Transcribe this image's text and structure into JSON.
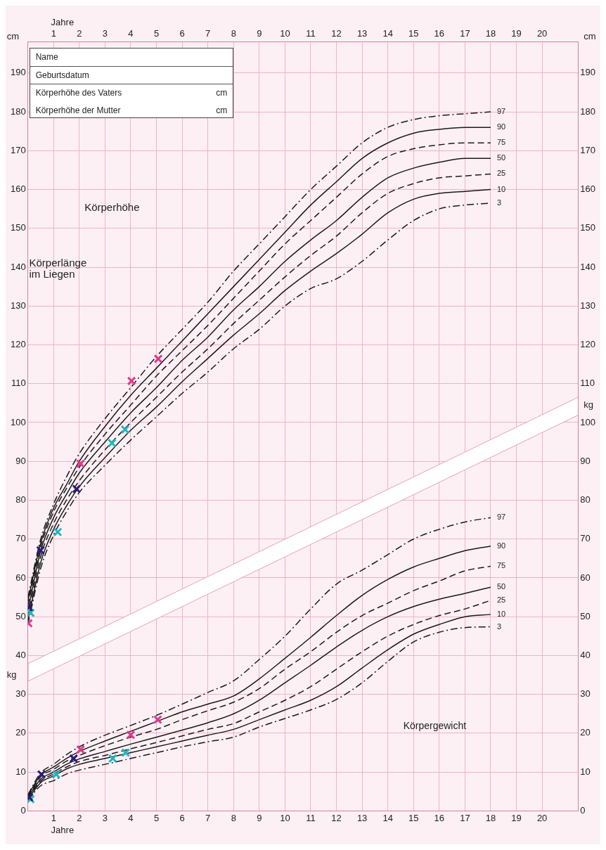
{
  "chart_data": {
    "type": "line",
    "xlabel": "Jahre",
    "x2label": "Jahre",
    "ylabel": "cm",
    "y2label": "cm",
    "annotations": [
      "Name",
      "Geburtsdatum",
      "Körperhöhe des Vaters",
      "cm",
      "Körperhöhe der Mutter",
      "cm",
      "Körperhöhe",
      "Körperlänge im Liegen",
      "Körpergewicht",
      "kg",
      "kg"
    ],
    "xlim": [
      0,
      21.4
    ],
    "xticks": [
      1,
      2,
      3,
      4,
      5,
      6,
      7,
      8,
      9,
      10,
      11,
      12,
      13,
      14,
      15,
      16,
      17,
      18,
      19,
      20
    ],
    "x2lim": [
      0,
      21.4
    ],
    "x2ticks": [
      1,
      2,
      3,
      4,
      5,
      6,
      7,
      8,
      9,
      10,
      11,
      12,
      13,
      14,
      15,
      16,
      17,
      18,
      19,
      20
    ],
    "ylim": [
      0,
      198
    ],
    "yticks": [
      0,
      10,
      20,
      30,
      40,
      50,
      60,
      70,
      80,
      90,
      100,
      110,
      120,
      130,
      140,
      150,
      160,
      170,
      180,
      190
    ],
    "y2lim": [
      0,
      198
    ],
    "y2ticks": [
      0,
      10,
      20,
      30,
      40,
      50,
      60,
      70,
      80,
      90,
      100,
      110,
      120,
      130,
      140,
      150,
      160,
      170,
      180,
      190
    ],
    "grid": true,
    "legend": false,
    "series": [
      {
        "name": "97",
        "type": "line",
        "color": "#1a1a1a",
        "line_style": "dashdot",
        "marker": "none",
        "x": [
          0,
          0.5,
          1,
          1.5,
          2,
          3,
          4,
          5,
          6,
          7,
          8,
          9,
          10,
          11,
          12,
          13,
          14,
          15,
          16,
          17,
          18
        ],
        "values": [
          55,
          70,
          79,
          86,
          92,
          101,
          109,
          117,
          124,
          131,
          139,
          146,
          153,
          160,
          166,
          172,
          176,
          178,
          179,
          179.5,
          180
        ]
      },
      {
        "name": "90",
        "type": "line",
        "color": "#1a1a1a",
        "line_style": "solid",
        "marker": "none",
        "x": [
          0,
          0.5,
          1,
          1.5,
          2,
          3,
          4,
          5,
          6,
          7,
          8,
          9,
          10,
          11,
          12,
          13,
          14,
          15,
          16,
          17,
          18
        ],
        "values": [
          54,
          69,
          78,
          84,
          90,
          99,
          107,
          114,
          121,
          128,
          135,
          142,
          149,
          156,
          162,
          168,
          172,
          174.5,
          175.5,
          176,
          176
        ]
      },
      {
        "name": "75",
        "type": "line",
        "color": "#1a1a1a",
        "line_style": "dashed",
        "marker": "none",
        "x": [
          0,
          0.5,
          1,
          1.5,
          2,
          3,
          4,
          5,
          6,
          7,
          8,
          9,
          10,
          11,
          12,
          13,
          14,
          15,
          16,
          17,
          18
        ],
        "values": [
          53,
          68,
          77,
          83,
          88.5,
          97,
          104.5,
          112,
          118.5,
          125,
          132,
          139,
          146,
          152,
          158,
          164,
          168.5,
          170.5,
          171.5,
          172,
          172
        ]
      },
      {
        "name": "50",
        "type": "line",
        "color": "#1a1a1a",
        "line_style": "solid",
        "marker": "none",
        "x": [
          0,
          0.5,
          1,
          1.5,
          2,
          3,
          4,
          5,
          6,
          7,
          8,
          9,
          10,
          11,
          12,
          13,
          14,
          15,
          16,
          17,
          18
        ],
        "values": [
          51.5,
          67,
          75.5,
          81.5,
          87,
          95,
          102.5,
          109,
          116,
          122,
          129,
          135,
          141.5,
          147,
          152,
          158,
          163,
          165.5,
          167,
          168,
          168
        ]
      },
      {
        "name": "25",
        "type": "line",
        "color": "#1a1a1a",
        "line_style": "dashed",
        "marker": "none",
        "x": [
          0,
          0.5,
          1,
          1.5,
          2,
          3,
          4,
          5,
          6,
          7,
          8,
          9,
          10,
          11,
          12,
          13,
          14,
          15,
          16,
          17,
          18
        ],
        "values": [
          50,
          65.5,
          74,
          80,
          85,
          93,
          100,
          106.5,
          113,
          119,
          125.5,
          131.5,
          137.5,
          143,
          148,
          154,
          159,
          161.5,
          163,
          163.5,
          164
        ]
      },
      {
        "name": "10",
        "type": "line",
        "color": "#1a1a1a",
        "line_style": "solid",
        "marker": "none",
        "x": [
          0,
          0.5,
          1,
          1.5,
          2,
          3,
          4,
          5,
          6,
          7,
          8,
          9,
          10,
          11,
          12,
          13,
          14,
          15,
          16,
          17,
          18
        ],
        "values": [
          49,
          64,
          72.5,
          78.5,
          83.5,
          91,
          98,
          104,
          110.5,
          116.5,
          122.5,
          128,
          134,
          139,
          143.5,
          148.5,
          154,
          157.5,
          159,
          159.5,
          160
        ]
      },
      {
        "name": "3",
        "type": "line",
        "color": "#1a1a1a",
        "line_style": "dashdot",
        "marker": "none",
        "x": [
          0,
          0.5,
          1,
          1.5,
          2,
          3,
          4,
          5,
          6,
          7,
          8,
          9,
          10,
          11,
          12,
          13,
          14,
          15,
          16,
          17,
          18
        ],
        "values": [
          48,
          62.5,
          71,
          77,
          82,
          89,
          95.5,
          101.5,
          107.5,
          113,
          119,
          124,
          130,
          134.5,
          137,
          141.5,
          147,
          152,
          155,
          156,
          156.5
        ]
      },
      {
        "name": "97",
        "type": "line",
        "color": "#1a1a1a",
        "line_style": "dashdot",
        "marker": "none",
        "x": [
          0,
          0.5,
          1,
          1.5,
          2,
          3,
          4,
          5,
          6,
          7,
          8,
          9,
          10,
          11,
          12,
          13,
          14,
          15,
          16,
          17,
          18
        ],
        "values": [
          4.2,
          9.8,
          12,
          14.5,
          16.5,
          19.5,
          22,
          24.6,
          27.5,
          30.5,
          33.5,
          39,
          45,
          52,
          58.4,
          62,
          66,
          70,
          72.5,
          74.4,
          75.5
        ]
      },
      {
        "name": "90",
        "type": "line",
        "color": "#1a1a1a",
        "line_style": "solid",
        "marker": "none",
        "x": [
          0,
          0.5,
          1,
          1.5,
          2,
          3,
          4,
          5,
          6,
          7,
          8,
          9,
          10,
          11,
          12,
          13,
          14,
          15,
          16,
          17,
          18
        ],
        "values": [
          4,
          9.2,
          11.3,
          13.5,
          15.3,
          18,
          20.5,
          23,
          25.5,
          27.5,
          29.6,
          34,
          39.3,
          44.7,
          50.3,
          55.5,
          59.6,
          62.8,
          65,
          67,
          68.2
        ]
      },
      {
        "name": "75",
        "type": "line",
        "color": "#1a1a1a",
        "line_style": "dashed",
        "marker": "none",
        "x": [
          0,
          0.5,
          1,
          1.5,
          2,
          3,
          4,
          5,
          6,
          7,
          8,
          9,
          10,
          11,
          12,
          13,
          14,
          15,
          16,
          17,
          18
        ],
        "values": [
          3.7,
          8.8,
          10.7,
          12.8,
          14.3,
          16.8,
          19,
          21,
          23.5,
          25.8,
          28,
          31.5,
          36.5,
          41,
          46,
          50.3,
          53.5,
          56.7,
          59.2,
          61.8,
          63
        ]
      },
      {
        "name": "50",
        "type": "line",
        "color": "#1a1a1a",
        "line_style": "solid",
        "marker": "none",
        "x": [
          0,
          0.5,
          1,
          1.5,
          2,
          3,
          4,
          5,
          6,
          7,
          8,
          9,
          10,
          11,
          12,
          13,
          14,
          15,
          16,
          17,
          18
        ],
        "values": [
          3.4,
          8.2,
          10,
          12,
          13.4,
          15.3,
          17.2,
          19,
          20.8,
          22.7,
          25,
          28.5,
          33,
          37.5,
          42.2,
          46.5,
          50,
          52.6,
          54.5,
          56,
          57.6
        ]
      },
      {
        "name": "25",
        "type": "line",
        "color": "#1a1a1a",
        "line_style": "dashed",
        "marker": "none",
        "x": [
          0,
          0.5,
          1,
          1.5,
          2,
          3,
          4,
          5,
          6,
          7,
          8,
          9,
          10,
          11,
          12,
          13,
          14,
          15,
          16,
          17,
          18
        ],
        "values": [
          3.2,
          7.7,
          9.5,
          11.3,
          12.7,
          14.3,
          16,
          17.6,
          19.3,
          21,
          22.5,
          25.5,
          28.5,
          32,
          36.5,
          41,
          45,
          48,
          50.3,
          52,
          54.2
        ]
      },
      {
        "name": "10",
        "type": "line",
        "color": "#1a1a1a",
        "line_style": "solid",
        "marker": "none",
        "x": [
          0,
          0.5,
          1,
          1.5,
          2,
          3,
          4,
          5,
          6,
          7,
          8,
          9,
          10,
          11,
          12,
          13,
          14,
          15,
          16,
          17,
          18
        ],
        "values": [
          3,
          7.3,
          9,
          10.8,
          12,
          13.5,
          15,
          16.5,
          18,
          19.5,
          21,
          23.5,
          26,
          28.5,
          32,
          36.8,
          41.5,
          45.5,
          48,
          50,
          50.6
        ]
      },
      {
        "name": "3",
        "type": "line",
        "color": "#1a1a1a",
        "line_style": "dashdot",
        "marker": "none",
        "x": [
          0,
          0.5,
          1,
          1.5,
          2,
          3,
          4,
          5,
          6,
          7,
          8,
          9,
          10,
          11,
          12,
          13,
          14,
          15,
          16,
          17,
          18
        ],
        "values": [
          2.8,
          6.5,
          7.8,
          9.5,
          10.5,
          12,
          13.5,
          15,
          16.5,
          17.8,
          19,
          21.6,
          23.8,
          26,
          28.7,
          33,
          38.5,
          43.5,
          46,
          47.2,
          47.4
        ]
      },
      {
        "type": "scatter",
        "color": "#e0398f",
        "marker": "cross",
        "x": [
          0.02,
          2.05,
          4.03,
          5.07,
          2.05,
          4.0,
          5.05
        ],
        "values": [
          48.3,
          89.4,
          110.7,
          116.4,
          15.8,
          19.6,
          23.5
        ]
      },
      {
        "type": "scatter",
        "color": "#1fb5c0",
        "marker": "cross",
        "x": [
          0.1,
          1.16,
          3.27,
          3.78,
          0.1,
          1.1,
          3.3,
          3.8
        ],
        "values": [
          51,
          71.8,
          94.7,
          98.2,
          3,
          9.4,
          13.5,
          15
        ]
      },
      {
        "type": "scatter",
        "color": "#2b1b78",
        "marker": "cross",
        "x": [
          0.03,
          0.49,
          1.89,
          0.05,
          0.53,
          1.78
        ],
        "values": [
          52.5,
          67.1,
          82.9,
          3.5,
          9.4,
          13.5
        ]
      }
    ]
  }
}
